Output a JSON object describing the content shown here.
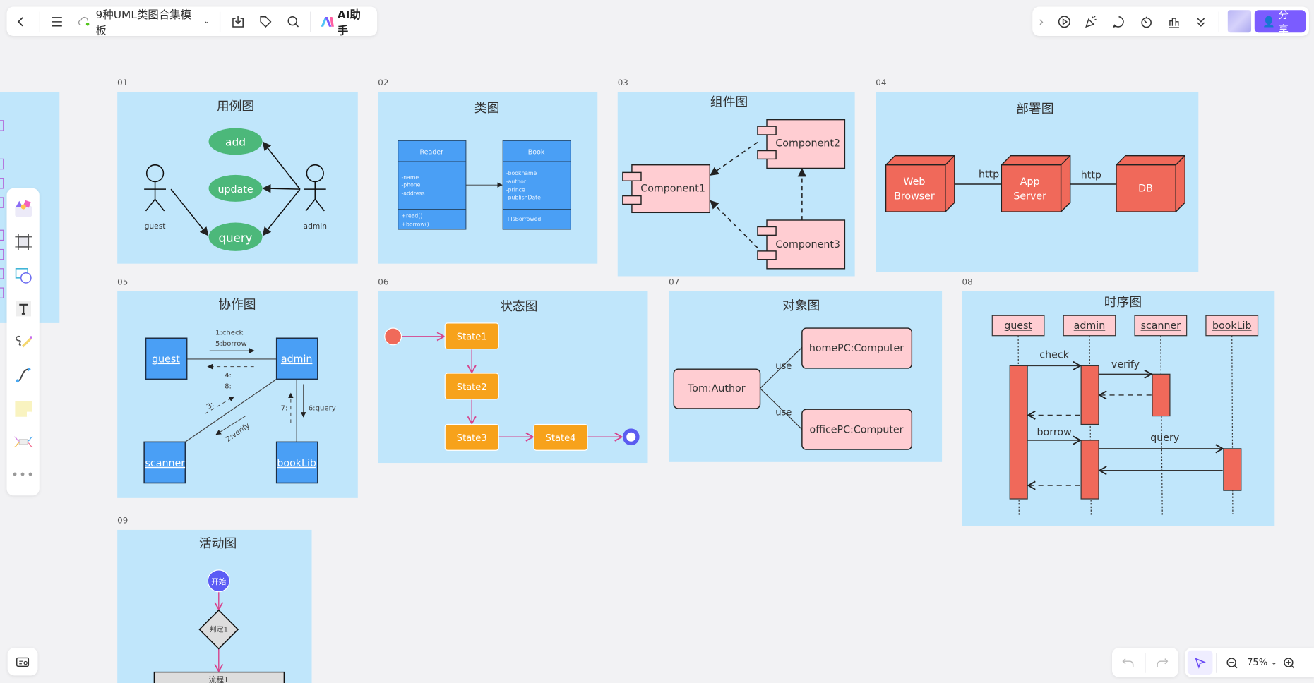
{
  "toolbar": {
    "doc_title": "9种UML类图合集模板",
    "ai_label": "AI助手",
    "share_label": "分享"
  },
  "zoom": {
    "level": "75%"
  },
  "colors": {
    "frame_bg": "#c0e6fb",
    "accent": "#7b5cff",
    "use_case_green": "#4cb87a",
    "class_blue": "#4a9ff5",
    "component_pink": "#ffcdd2",
    "deploy_red": "#f0695a",
    "state_orange": "#f7a21b"
  },
  "frames": [
    {
      "num": "01",
      "title": "用例图",
      "actors": [
        "guest",
        "admin"
      ],
      "cases": [
        "add",
        "update",
        "query"
      ]
    },
    {
      "num": "02",
      "title": "类图",
      "classes": [
        {
          "name": "Reader",
          "attrs": [
            "-name",
            "-phone",
            "-address"
          ],
          "methods": [
            "+read()",
            "+borrow()"
          ]
        },
        {
          "name": "Book",
          "attrs": [
            "-bookname",
            "-author",
            "-prince",
            "-publishDate"
          ],
          "methods": [
            "+IsBorrowed"
          ]
        }
      ]
    },
    {
      "num": "03",
      "title": "组件图",
      "components": [
        "Component1",
        "Component2",
        "Component3"
      ]
    },
    {
      "num": "04",
      "title": "部署图",
      "nodes": [
        "Web Browser",
        "App Server",
        "DB"
      ],
      "links": [
        "http",
        "http"
      ]
    },
    {
      "num": "05",
      "title": "协作图",
      "objects": [
        "guest",
        "admin",
        "scanner",
        "bookLib"
      ],
      "messages": [
        "1:check",
        "5:borrow",
        "4:",
        "8:",
        "3:",
        "2:verify",
        "7:",
        "6:query"
      ]
    },
    {
      "num": "06",
      "title": "状态图",
      "states": [
        "State1",
        "State2",
        "State3",
        "State4"
      ]
    },
    {
      "num": "07",
      "title": "对象图",
      "objects": [
        "Tom:Author",
        "homePC:Computer",
        "officePC:Computer"
      ],
      "links": [
        "use",
        "use"
      ]
    },
    {
      "num": "08",
      "title": "时序图",
      "lifelines": [
        "guest",
        "admin",
        "scanner",
        "bookLib"
      ],
      "messages": [
        "check",
        "verify",
        "borrow",
        "query"
      ]
    },
    {
      "num": "09",
      "title": "活动图",
      "start": "开始",
      "decision": "判定1",
      "process": "流程1"
    }
  ]
}
